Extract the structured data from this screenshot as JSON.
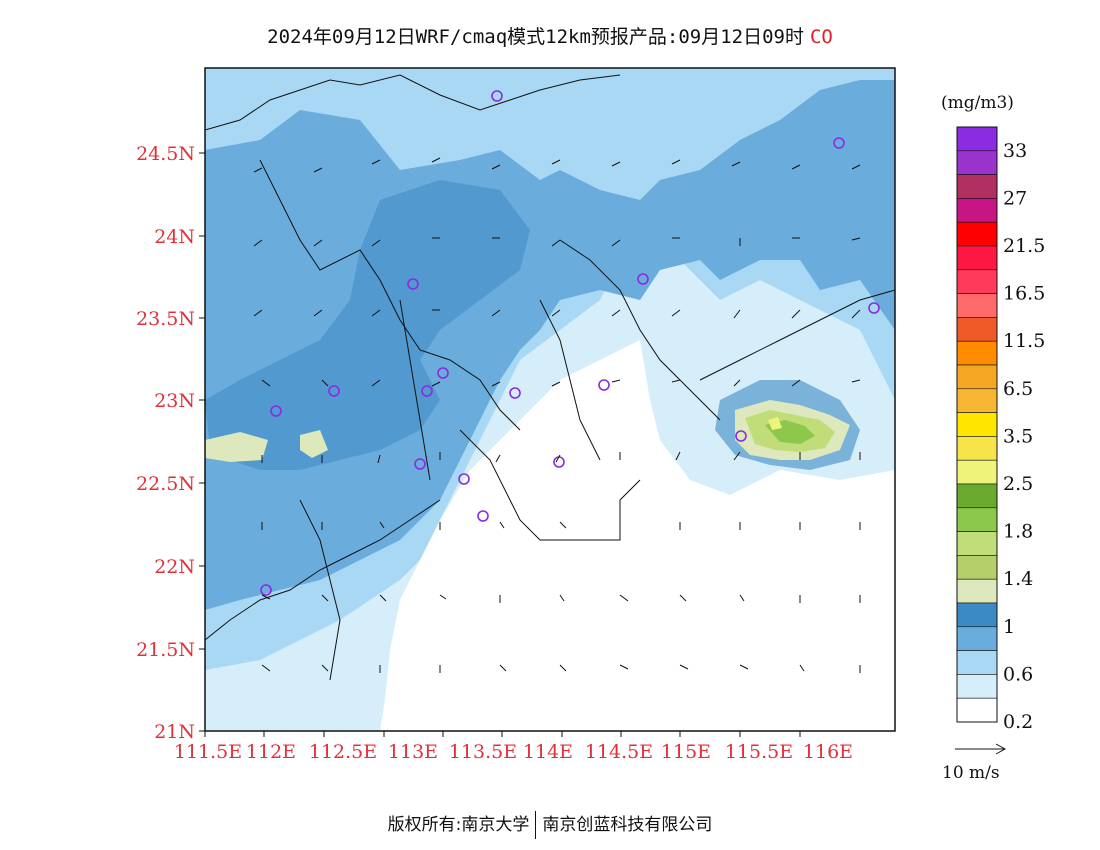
{
  "title": {
    "main": "2024年09月12日WRF/cmaq模式12km预报产品:09月12日09时",
    "pollutant": "CO",
    "pollutant_color": "#e0202a"
  },
  "map": {
    "region": "Guangdong coastal area",
    "lat_ticks": [
      "24.5N",
      "24N",
      "23.5N",
      "23N",
      "22.5N",
      "22N",
      "21.5N",
      "21N"
    ],
    "lon_ticks": [
      "111.5E",
      "112E",
      "112.5E",
      "113E",
      "113.5E",
      "114E",
      "114.5E",
      "115E",
      "115.5E",
      "116E"
    ],
    "label_color": "#e0303a"
  },
  "legend": {
    "unit": "(mg/m3)",
    "labels": [
      "33",
      "27",
      "21.5",
      "16.5",
      "11.5",
      "6.5",
      "3.5",
      "2.5",
      "1.8",
      "1.4",
      "1",
      "0.6",
      "0.2"
    ],
    "colors": [
      "#8b2be2",
      "#9a32cd",
      "#b03060",
      "#c71585",
      "#ff0000",
      "#ff1744",
      "#ff3a5a",
      "#ff6a6a",
      "#f05a28",
      "#ff8c00",
      "#f5a623",
      "#f7b733",
      "#ffe600",
      "#f7e34a",
      "#eef37a",
      "#6aab2f",
      "#8cc84b",
      "#c0dd7a",
      "#b5d06a",
      "#dde8bd",
      "#3c8ac4",
      "#6aacdc",
      "#a9d8f5",
      "#d6eefa",
      "#ffffff"
    ]
  },
  "wind": {
    "reference_label": "10 m/s"
  },
  "footer": {
    "copyright": "版权所有:南京大学",
    "company": "南京创蓝科技有限公司"
  }
}
